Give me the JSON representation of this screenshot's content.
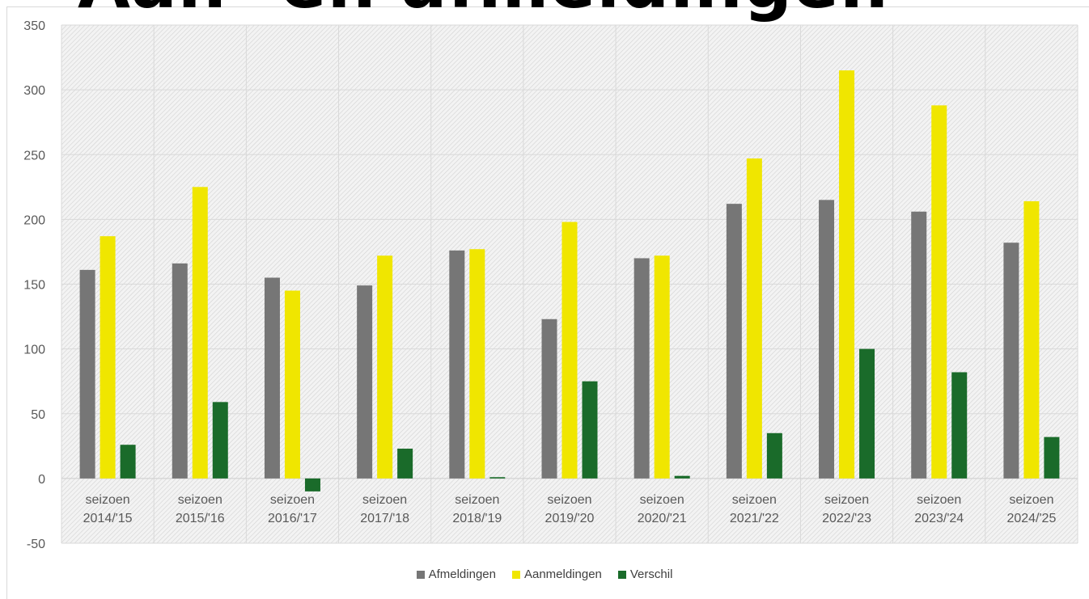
{
  "page": {
    "title": "Aan- en afmeldingen"
  },
  "chart_data": {
    "type": "bar",
    "categories": [
      [
        "seizoen",
        "2014/'15"
      ],
      [
        "seizoen",
        "2015/'16"
      ],
      [
        "seizoen",
        "2016/'17"
      ],
      [
        "seizoen",
        "2017/'18"
      ],
      [
        "seizoen",
        "2018/'19"
      ],
      [
        "seizoen",
        "2019/'20"
      ],
      [
        "seizoen",
        "2020/'21"
      ],
      [
        "seizoen",
        "2021/'22"
      ],
      [
        "seizoen",
        "2022/'23"
      ],
      [
        "seizoen",
        "2023/'24"
      ],
      [
        "seizoen",
        "2024/'25"
      ]
    ],
    "series": [
      {
        "name": "Afmeldingen",
        "color": "#767676",
        "values": [
          161,
          166,
          155,
          149,
          176,
          123,
          170,
          212,
          215,
          206,
          182
        ]
      },
      {
        "name": "Aanmeldingen",
        "color": "#f0e600",
        "values": [
          187,
          225,
          145,
          172,
          177,
          198,
          172,
          247,
          315,
          288,
          214
        ]
      },
      {
        "name": "Verschil",
        "color": "#1a6b2a",
        "values": [
          26,
          59,
          -10,
          23,
          1,
          75,
          2,
          35,
          100,
          82,
          32
        ]
      }
    ],
    "ylim": [
      -50,
      350
    ],
    "yticks": [
      "-50",
      "0",
      "50",
      "100",
      "150",
      "200",
      "250",
      "300",
      "350"
    ],
    "grid": true,
    "legend_position": "bottom",
    "plot_background": "hatched light gray"
  }
}
